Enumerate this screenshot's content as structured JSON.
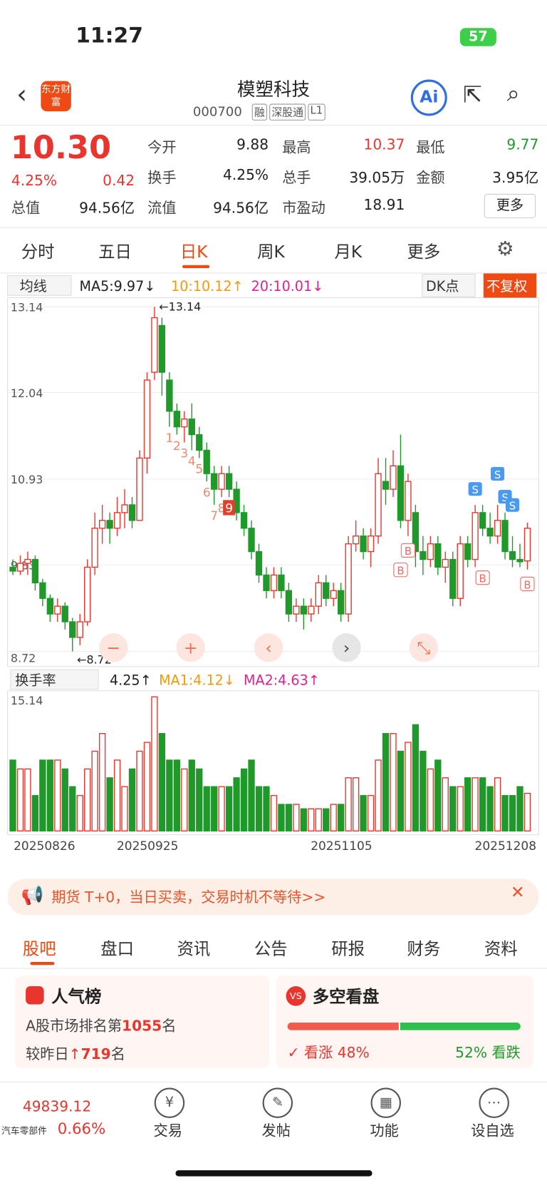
{
  "status": {
    "time": "11:27",
    "battery": "57"
  },
  "header": {
    "title": "模塑科技",
    "code": "000700",
    "tags": [
      "融",
      "深股通",
      "L1"
    ],
    "logo": "东方财富"
  },
  "quote": {
    "price": "10.30",
    "pct": "4.25%",
    "change": "0.42",
    "more": "更多",
    "fields": [
      {
        "label": "今开",
        "value": "9.88"
      },
      {
        "label": "最高",
        "value": "10.37"
      },
      {
        "label": "最低",
        "value": "9.77"
      },
      {
        "label": "换手",
        "value": "4.25%"
      },
      {
        "label": "总手",
        "value": "39.05万"
      },
      {
        "label": "金额",
        "value": "3.95亿"
      },
      {
        "label": "总值",
        "value": "94.56亿"
      },
      {
        "label": "流值",
        "value": "94.56亿"
      },
      {
        "label": "市盈动",
        "value": "18.91"
      }
    ]
  },
  "period_tabs": [
    "分时",
    "五日",
    "日K",
    "周K",
    "月K",
    "更多"
  ],
  "kline": {
    "legend": [
      "均线",
      "MA5:9.97↓",
      "10:10.12↑",
      "20:10.01↓"
    ],
    "dk": "DK点",
    "adjust": "不复权",
    "ylim": [
      8.72,
      13.14
    ],
    "yticks": [
      13.14,
      12.04,
      10.93,
      9.83,
      8.72
    ],
    "high_label": "←13.14",
    "low_label": "←8.72",
    "candles": [
      [
        9.8,
        9.75,
        9.9,
        9.7
      ],
      [
        9.75,
        9.85,
        9.95,
        9.7
      ],
      [
        9.85,
        9.9,
        10.0,
        9.7
      ],
      [
        9.9,
        9.6,
        9.95,
        9.5
      ],
      [
        9.6,
        9.4,
        9.65,
        9.3
      ],
      [
        9.4,
        9.2,
        9.45,
        9.1
      ],
      [
        9.2,
        9.3,
        9.4,
        9.1
      ],
      [
        9.3,
        9.1,
        9.35,
        9.0
      ],
      [
        9.1,
        8.9,
        9.15,
        8.72
      ],
      [
        8.9,
        9.1,
        9.2,
        8.8
      ],
      [
        9.1,
        9.8,
        9.9,
        9.05
      ],
      [
        9.8,
        10.3,
        10.5,
        9.7
      ],
      [
        10.3,
        10.4,
        10.6,
        10.1
      ],
      [
        10.4,
        10.3,
        10.5,
        10.1
      ],
      [
        10.3,
        10.5,
        10.7,
        10.2
      ],
      [
        10.5,
        10.6,
        10.8,
        10.3
      ],
      [
        10.6,
        10.4,
        10.7,
        10.3
      ],
      [
        10.4,
        11.2,
        11.3,
        10.4
      ],
      [
        11.2,
        12.2,
        12.3,
        11.0
      ],
      [
        12.3,
        13.0,
        13.14,
        12.2
      ],
      [
        12.9,
        12.3,
        13.0,
        12.0
      ],
      [
        12.2,
        11.8,
        12.3,
        11.6
      ],
      [
        11.8,
        11.6,
        11.9,
        11.5
      ],
      [
        11.6,
        11.7,
        11.8,
        11.4
      ],
      [
        11.7,
        11.5,
        11.9,
        11.3
      ],
      [
        11.5,
        11.3,
        11.6,
        11.2
      ],
      [
        11.3,
        11.0,
        11.4,
        10.9
      ],
      [
        11.0,
        10.8,
        11.1,
        10.6
      ],
      [
        10.8,
        11.0,
        11.1,
        10.7
      ],
      [
        11.0,
        10.8,
        11.1,
        10.7
      ],
      [
        10.8,
        10.5,
        10.9,
        10.4
      ],
      [
        10.5,
        10.3,
        10.6,
        10.2
      ],
      [
        10.3,
        10.0,
        10.4,
        9.9
      ],
      [
        10.0,
        9.7,
        10.1,
        9.6
      ],
      [
        9.7,
        9.5,
        9.8,
        9.4
      ],
      [
        9.5,
        9.7,
        9.8,
        9.4
      ],
      [
        9.7,
        9.5,
        9.8,
        9.4
      ],
      [
        9.5,
        9.2,
        9.6,
        9.1
      ],
      [
        9.2,
        9.3,
        9.4,
        9.1
      ],
      [
        9.3,
        9.2,
        9.4,
        9.0
      ],
      [
        9.2,
        9.3,
        9.4,
        9.1
      ],
      [
        9.3,
        9.6,
        9.7,
        9.2
      ],
      [
        9.6,
        9.4,
        9.7,
        9.3
      ],
      [
        9.4,
        9.5,
        9.6,
        9.3
      ],
      [
        9.5,
        9.2,
        9.6,
        9.1
      ],
      [
        9.2,
        10.1,
        10.2,
        9.1
      ],
      [
        10.1,
        10.2,
        10.4,
        10.0
      ],
      [
        10.2,
        10.0,
        10.3,
        9.9
      ],
      [
        10.0,
        10.2,
        10.3,
        9.8
      ],
      [
        10.2,
        11.0,
        11.2,
        10.1
      ],
      [
        10.9,
        10.8,
        11.2,
        10.6
      ],
      [
        10.8,
        11.1,
        11.3,
        10.7
      ],
      [
        11.1,
        10.4,
        11.5,
        10.3
      ],
      [
        10.4,
        10.9,
        11.0,
        10.2
      ],
      [
        10.5,
        10.0,
        10.6,
        9.8
      ],
      [
        10.0,
        9.9,
        10.2,
        9.7
      ],
      [
        9.9,
        10.1,
        10.2,
        9.8
      ],
      [
        10.1,
        9.8,
        10.2,
        9.7
      ],
      [
        9.8,
        9.9,
        10.0,
        9.6
      ],
      [
        9.9,
        9.4,
        10.0,
        9.3
      ],
      [
        9.4,
        10.1,
        10.2,
        9.3
      ],
      [
        10.1,
        9.9,
        10.2,
        9.8
      ],
      [
        9.9,
        10.5,
        10.6,
        9.8
      ],
      [
        10.5,
        10.3,
        10.6,
        10.2
      ],
      [
        10.3,
        10.2,
        10.5,
        10.1
      ],
      [
        10.2,
        10.4,
        10.6,
        10.1
      ],
      [
        10.4,
        10.0,
        10.5,
        9.9
      ],
      [
        10.0,
        9.9,
        10.2,
        9.8
      ],
      [
        9.9,
        9.87,
        10.1,
        9.8
      ],
      [
        9.88,
        10.3,
        10.37,
        9.77
      ]
    ],
    "markers": [
      {
        "label": "1",
        "index": 21
      },
      {
        "label": "2",
        "index": 22
      },
      {
        "label": "3",
        "index": 23
      },
      {
        "label": "4",
        "index": 24
      },
      {
        "label": "5",
        "index": 25
      },
      {
        "label": "6",
        "index": 26
      },
      {
        "label": "7",
        "index": 27
      },
      {
        "label": "8",
        "index": 28
      },
      {
        "label": "9",
        "index": 29
      },
      {
        "label": "B",
        "index": 52
      },
      {
        "label": "B",
        "index": 53
      },
      {
        "label": "B",
        "index": 63
      },
      {
        "label": "B",
        "index": 69
      },
      {
        "label": "S",
        "index": 62
      },
      {
        "label": "S",
        "index": 65
      },
      {
        "label": "S",
        "index": 66
      },
      {
        "label": "S",
        "index": 67
      }
    ]
  },
  "volume": {
    "legend": [
      "换手率",
      "4.25↑",
      "MA1:4.12↓",
      "MA2:4.63↑"
    ],
    "ylim": [
      0,
      15.14
    ],
    "yticks": [
      15.14
    ],
    "values": [
      8,
      7,
      7,
      4,
      8,
      8,
      8,
      7,
      5,
      4,
      7,
      9,
      11,
      6,
      8,
      5,
      7,
      9,
      10,
      15.14,
      11,
      8,
      8,
      7,
      8,
      7,
      5,
      5,
      5,
      5,
      6,
      7,
      8,
      5,
      5,
      4,
      3,
      3,
      3,
      2.5,
      2.5,
      2.5,
      2.5,
      3,
      3,
      6,
      6,
      4,
      4,
      8,
      11,
      11,
      9,
      10,
      12,
      9,
      7,
      8,
      6,
      5,
      5,
      6,
      6,
      6,
      5,
      6,
      4,
      4,
      5,
      4.25
    ],
    "dates": [
      {
        "label": "20250826",
        "index": 0
      },
      {
        "label": "20250925",
        "index": 18
      },
      {
        "label": "20251105",
        "index": 44
      },
      {
        "label": "20251208",
        "index": 66
      }
    ]
  },
  "banner": "期货 T+0，当日买卖，交易时机不等待>>",
  "info_tabs": [
    "股吧",
    "盘口",
    "资讯",
    "公告",
    "研报",
    "财务",
    "资料"
  ],
  "popularity": {
    "title": "人气榜",
    "rank_prefix": "A股市场排名第",
    "rank": "1055",
    "rank_suffix": "名",
    "change_prefix": "较昨日",
    "change": "719",
    "change_suffix": "名"
  },
  "sentiment": {
    "title": "多空看盘",
    "up": 48,
    "down": 52,
    "up_label": "看涨 48%",
    "down_label": "52% 看跌"
  },
  "bottom": {
    "index_value": "49839.12",
    "sector": "汽车零部件",
    "sector_pct": "0.66%",
    "buttons": [
      "交易",
      "发帖",
      "功能",
      "设自选"
    ]
  }
}
